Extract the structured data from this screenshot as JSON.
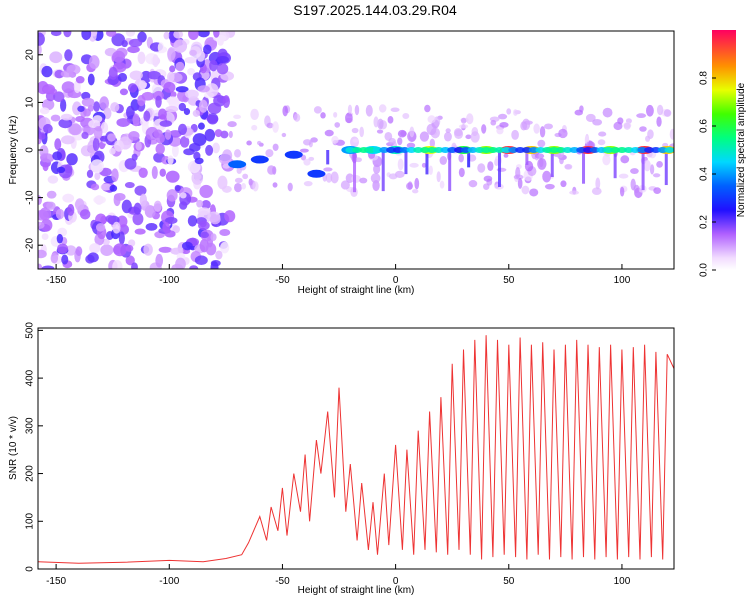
{
  "title": "S197.2025.144.03.29.R04",
  "chart_data": [
    {
      "type": "heatmap",
      "xlabel": "Height of straight line (km)",
      "ylabel": "Frequency (Hz)",
      "xlim": [
        -158,
        123
      ],
      "ylim": [
        -25,
        25
      ],
      "xticks": [
        -150,
        -100,
        -50,
        0,
        50,
        100
      ],
      "yticks": [
        -20,
        -10,
        0,
        10,
        20
      ],
      "colorbar": {
        "label": "Normalized spectral amplitude",
        "ticks": [
          0.0,
          0.2,
          0.4,
          0.6,
          0.8
        ],
        "range": [
          0,
          1
        ]
      },
      "description_points": [
        {
          "x": -70,
          "y": -3,
          "v": 0.35
        },
        {
          "x": -60,
          "y": -2,
          "v": 0.3
        },
        {
          "x": -45,
          "y": -1,
          "v": 0.3
        },
        {
          "x": -35,
          "y": -5,
          "v": 0.3
        },
        {
          "x": -20,
          "y": 0,
          "v": 0.4
        },
        {
          "x": -10,
          "y": 0,
          "v": 0.45
        },
        {
          "x": 0,
          "y": 0,
          "v": 0.5
        },
        {
          "x": 15,
          "y": 0,
          "v": 0.75
        },
        {
          "x": 30,
          "y": 0,
          "v": 0.6
        },
        {
          "x": 40,
          "y": 0,
          "v": 0.7
        },
        {
          "x": 50,
          "y": 0,
          "v": 0.95
        },
        {
          "x": 60,
          "y": 0,
          "v": 0.8
        },
        {
          "x": 70,
          "y": 0,
          "v": 0.7
        },
        {
          "x": 85,
          "y": 0,
          "v": 0.95
        },
        {
          "x": 95,
          "y": 0,
          "v": 0.7
        },
        {
          "x": 110,
          "y": 0,
          "v": 0.95
        },
        {
          "x": 120,
          "y": 0,
          "v": 0.8
        }
      ]
    },
    {
      "type": "line",
      "xlabel": "Height of straight line (km)",
      "ylabel": "SNR (10 * v/v)",
      "xlim": [
        -158,
        123
      ],
      "ylim": [
        0,
        505
      ],
      "xticks": [
        -150,
        -100,
        -50,
        0,
        50,
        100
      ],
      "yticks": [
        0,
        100,
        200,
        300,
        400,
        500
      ],
      "color": "#ee3333",
      "series": [
        {
          "x": [
            -158,
            -140,
            -120,
            -100,
            -85,
            -75,
            -68,
            -65,
            -60,
            -57,
            -55,
            -52,
            -50,
            -48,
            -45,
            -42,
            -40,
            -38,
            -35,
            -33,
            -30,
            -27,
            -25,
            -22,
            -20,
            -17,
            -15,
            -12,
            -10,
            -8,
            -5,
            -3,
            0,
            3,
            5,
            8,
            10,
            13,
            15,
            18,
            20,
            23,
            25,
            28,
            30,
            33,
            35,
            38,
            40,
            43,
            45,
            48,
            50,
            53,
            55,
            58,
            60,
            63,
            65,
            68,
            70,
            73,
            75,
            78,
            80,
            83,
            85,
            88,
            90,
            93,
            95,
            98,
            100,
            103,
            105,
            108,
            110,
            113,
            115,
            118,
            120,
            123
          ],
          "y": [
            15,
            12,
            14,
            18,
            15,
            22,
            30,
            55,
            110,
            60,
            130,
            80,
            170,
            70,
            200,
            120,
            240,
            100,
            270,
            200,
            330,
            150,
            380,
            120,
            220,
            60,
            180,
            40,
            140,
            30,
            200,
            50,
            260,
            40,
            250,
            30,
            290,
            40,
            330,
            35,
            360,
            30,
            430,
            40,
            460,
            30,
            480,
            20,
            490,
            25,
            480,
            30,
            470,
            25,
            485,
            20,
            470,
            30,
            475,
            20,
            460,
            25,
            470,
            20,
            480,
            25,
            470,
            20,
            465,
            25,
            470,
            20,
            460,
            25,
            465,
            20,
            470,
            25,
            455,
            20,
            450,
            420
          ]
        }
      ]
    }
  ]
}
